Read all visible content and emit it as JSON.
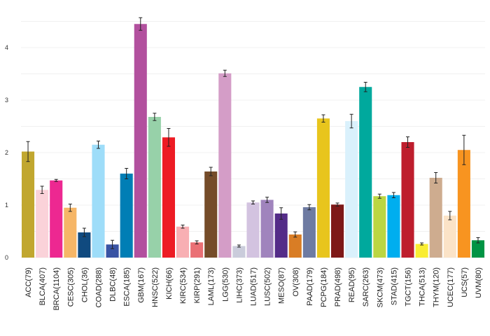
{
  "chart_data": {
    "type": "bar",
    "categories": [
      "ACC(79)",
      "BLCA(407)",
      "BRCA(1104)",
      "CESC(305)",
      "CHOL(36)",
      "COAD(288)",
      "DLBC(48)",
      "ESCA(185)",
      "GBM(167)",
      "HNSC(522)",
      "KICH(66)",
      "KIRC(534)",
      "KIRP(291)",
      "LAML(173)",
      "LGG(530)",
      "LIHC(373)",
      "LUAD(517)",
      "LUSC(502)",
      "MESO(87)",
      "OV(308)",
      "PAAD(179)",
      "PCPG(184)",
      "PRAD(498)",
      "READ(95)",
      "SARC(263)",
      "SKCM(473)",
      "STAD(415)",
      "TGCT(156)",
      "THCA(513)",
      "THYM(120)",
      "UCEC(177)",
      "UCS(57)",
      "UVM(80)"
    ],
    "values": [
      2.02,
      1.29,
      1.47,
      0.95,
      0.48,
      2.15,
      0.25,
      1.6,
      4.45,
      2.68,
      2.29,
      0.59,
      0.29,
      1.64,
      3.51,
      0.22,
      1.05,
      1.1,
      0.84,
      0.44,
      0.96,
      2.65,
      1.01,
      2.6,
      3.25,
      1.17,
      1.19,
      2.2,
      0.26,
      1.52,
      0.8,
      2.05,
      0.33
    ],
    "errors": [
      0.19,
      0.07,
      0.02,
      0.07,
      0.08,
      0.07,
      0.08,
      0.1,
      0.12,
      0.07,
      0.17,
      0.03,
      0.03,
      0.08,
      0.06,
      0.02,
      0.03,
      0.05,
      0.11,
      0.05,
      0.05,
      0.07,
      0.03,
      0.13,
      0.09,
      0.04,
      0.05,
      0.1,
      0.02,
      0.1,
      0.08,
      0.28,
      0.05
    ],
    "colors": [
      "#C1A72F",
      "#FAD2D9",
      "#ED2891",
      "#F6B667",
      "#104A7F",
      "#9EDDF9",
      "#3953A4",
      "#007EB5",
      "#B2509E",
      "#97D1A9",
      "#ED1C24",
      "#F8AFB3",
      "#EA7075",
      "#754C29",
      "#D49DC7",
      "#CACCDB",
      "#D3C3E0",
      "#A084BD",
      "#542C88",
      "#D97D25",
      "#6E7BA2",
      "#E8C51D",
      "#7E1918",
      "#DAF1FC",
      "#00A99D",
      "#BBD642",
      "#00AEEF",
      "#BE1E2D",
      "#F9ED32",
      "#CEAC8F",
      "#FBE3C7",
      "#F89420",
      "#009444"
    ],
    "ylim": [
      0,
      4.7
    ],
    "yticks": [
      "0",
      "1",
      "2",
      "3",
      "4"
    ],
    "xlabel": "",
    "ylabel": "",
    "grid": true
  }
}
